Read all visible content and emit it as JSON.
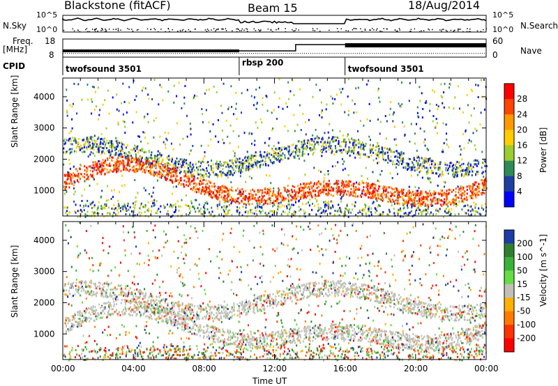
{
  "header": {
    "station": "Blackstone (fitACF)",
    "beam": "Beam 15",
    "date": "18/Aug/2014"
  },
  "side_labels": {
    "nsky": "N.Sky",
    "nsearch": "N.Search",
    "freq": "Freq.",
    "freq_unit": "[MHz]",
    "nave": "Nave",
    "cpid": "CPID"
  },
  "panel_ticks": {
    "nsky_left": [
      "10^5",
      "10^0"
    ],
    "nsky_right": [
      "10^5",
      "10^0"
    ],
    "freq_left": [
      "18",
      "8"
    ],
    "freq_right": [
      "60",
      "0"
    ]
  },
  "cpid_segments": [
    {
      "label": "twofsound 3501",
      "start_h": 0
    },
    {
      "label": "rbsp 200",
      "start_h": 10
    },
    {
      "label": "twofsound 3501",
      "start_h": 16
    }
  ],
  "chart_data": [
    {
      "type": "heatmap",
      "name": "power",
      "ylabel": "Slant Range [km]",
      "xlabel": "Time UT",
      "x_ticks": [
        "00:00",
        "04:00",
        "08:00",
        "12:00",
        "16:00",
        "20:00",
        "00:00"
      ],
      "xlim_hours": [
        0,
        24
      ],
      "ylim": [
        180,
        4600
      ],
      "y_ticks": [
        1000,
        2000,
        3000,
        4000
      ],
      "colorbar_label": "Power [dB]",
      "colorbar_ticks": [
        "28",
        "24",
        "20",
        "16",
        "12",
        "8",
        "4"
      ],
      "colorbar_colors": [
        "#ff0000",
        "#ff4500",
        "#ff9900",
        "#ffcc00",
        "#9acd32",
        "#2e8b57",
        "#1f3fa0",
        "#0000ff"
      ]
    },
    {
      "type": "heatmap",
      "name": "velocity",
      "ylabel": "Slant Range [km]",
      "xlabel": "Time UT",
      "x_ticks": [
        "00:00",
        "04:00",
        "08:00",
        "12:00",
        "16:00",
        "20:00",
        "00:00"
      ],
      "xlim_hours": [
        0,
        24
      ],
      "ylim": [
        180,
        4600
      ],
      "y_ticks": [
        1000,
        2000,
        3000,
        4000
      ],
      "colorbar_label": "Velocity [m s^-1]",
      "colorbar_ticks": [
        "200",
        "100",
        "50",
        "15",
        "-15",
        "-50",
        "-100",
        "-200"
      ],
      "colorbar_colors": [
        "#1e3ca8",
        "#2f7f2f",
        "#39b239",
        "#66dd44",
        "#c0c0b8",
        "#ffb000",
        "#ff7a00",
        "#ff3300",
        "#ff0000"
      ]
    }
  ]
}
